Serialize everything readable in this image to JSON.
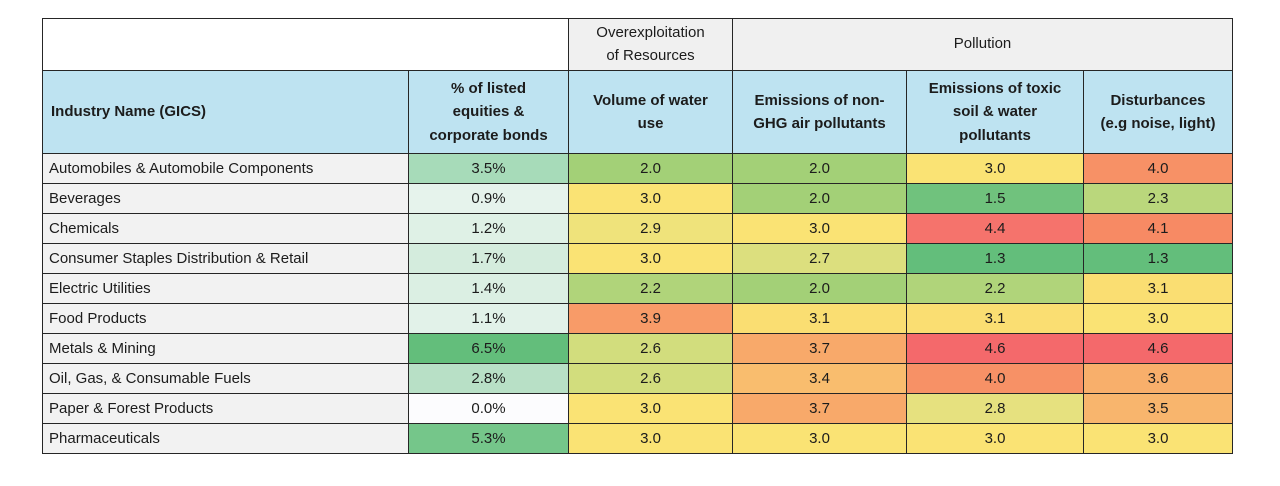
{
  "table": {
    "group_headers": {
      "overexploitation": "Overexploitation\nof Resources",
      "pollution": "Pollution"
    },
    "column_headers": [
      "Industry Name (GICS)",
      "% of listed\nequities &\ncorporate bonds",
      "Volume of water\nuse",
      "Emissions of non-\nGHG air pollutants",
      "Emissions of toxic\nsoil & water\npollutants",
      "Disturbances\n(e.g noise, light)"
    ],
    "cell_names": [
      "pct-listed-cell",
      "water-use-cell",
      "non-ghg-air-cell",
      "toxic-soil-water-cell",
      "disturbances-cell"
    ],
    "colors": {
      "header_blue": "#BEE3F1",
      "group_gray": "#F0F0F0",
      "label_gray": "#F2F2F2",
      "border": "#262626"
    },
    "rows": [
      {
        "name": "Automobiles & Automobile Components",
        "cells": [
          {
            "v": "3.5%",
            "c": "#A7DBB9"
          },
          {
            "v": "2.0",
            "c": "#A3D077"
          },
          {
            "v": "2.0",
            "c": "#A3D077"
          },
          {
            "v": "3.0",
            "c": "#FAE374"
          },
          {
            "v": "4.0",
            "c": "#F79166"
          }
        ]
      },
      {
        "name": "Beverages",
        "cells": [
          {
            "v": "0.9%",
            "c": "#E6F3EC"
          },
          {
            "v": "3.0",
            "c": "#FAE374"
          },
          {
            "v": "2.0",
            "c": "#A3D077"
          },
          {
            "v": "1.5",
            "c": "#70C27D"
          },
          {
            "v": "2.3",
            "c": "#BAD77C"
          }
        ]
      },
      {
        "name": "Chemicals",
        "cells": [
          {
            "v": "1.2%",
            "c": "#DFF1E6"
          },
          {
            "v": "2.9",
            "c": "#EFE37B"
          },
          {
            "v": "3.0",
            "c": "#FAE374"
          },
          {
            "v": "4.4",
            "c": "#F5736C"
          },
          {
            "v": "4.1",
            "c": "#F78A64"
          }
        ]
      },
      {
        "name": "Consumer Staples Distribution & Retail",
        "cells": [
          {
            "v": "1.7%",
            "c": "#D4ECDD"
          },
          {
            "v": "3.0",
            "c": "#FAE374"
          },
          {
            "v": "2.7",
            "c": "#DCDF7E"
          },
          {
            "v": "1.3",
            "c": "#63BE7B"
          },
          {
            "v": "1.3",
            "c": "#63BE7B"
          }
        ]
      },
      {
        "name": "Electric Utilities",
        "cells": [
          {
            "v": "1.4%",
            "c": "#DBEFE3"
          },
          {
            "v": "2.2",
            "c": "#B0D47A"
          },
          {
            "v": "2.0",
            "c": "#A3D077"
          },
          {
            "v": "2.2",
            "c": "#B0D47A"
          },
          {
            "v": "3.1",
            "c": "#FADE72"
          }
        ]
      },
      {
        "name": "Food Products",
        "cells": [
          {
            "v": "1.1%",
            "c": "#E2F2E9"
          },
          {
            "v": "3.9",
            "c": "#F89B68"
          },
          {
            "v": "3.1",
            "c": "#FADE72"
          },
          {
            "v": "3.1",
            "c": "#FADE72"
          },
          {
            "v": "3.0",
            "c": "#FAE374"
          }
        ]
      },
      {
        "name": "Metals & Mining",
        "cells": [
          {
            "v": "6.5%",
            "c": "#63BE7B"
          },
          {
            "v": "2.6",
            "c": "#D2DD7D"
          },
          {
            "v": "3.7",
            "c": "#F8A96A"
          },
          {
            "v": "4.6",
            "c": "#F4696B"
          },
          {
            "v": "4.6",
            "c": "#F4696B"
          }
        ]
      },
      {
        "name": "Oil, Gas, & Consumable Fuels",
        "cells": [
          {
            "v": "2.8%",
            "c": "#B8E0C6"
          },
          {
            "v": "2.6",
            "c": "#D2DD7D"
          },
          {
            "v": "3.4",
            "c": "#F9BD6E"
          },
          {
            "v": "4.0",
            "c": "#F79166"
          },
          {
            "v": "3.6",
            "c": "#F8AF6B"
          }
        ]
      },
      {
        "name": "Paper & Forest Products",
        "cells": [
          {
            "v": "0.0%",
            "c": "#FCFCFE"
          },
          {
            "v": "3.0",
            "c": "#FAE374"
          },
          {
            "v": "3.7",
            "c": "#F8A96A"
          },
          {
            "v": "2.8",
            "c": "#E6E17F"
          },
          {
            "v": "3.5",
            "c": "#F8B56D"
          }
        ]
      },
      {
        "name": "Pharmaceuticals",
        "cells": [
          {
            "v": "5.3%",
            "c": "#75C68A"
          },
          {
            "v": "3.0",
            "c": "#FAE374"
          },
          {
            "v": "3.0",
            "c": "#FAE374"
          },
          {
            "v": "3.0",
            "c": "#FAE374"
          },
          {
            "v": "3.0",
            "c": "#FAE374"
          }
        ]
      }
    ]
  },
  "chart_data": {
    "type": "heatmap",
    "row_header": "Industry Name (GICS)",
    "column_groups": [
      {
        "label": "Overexploitation of Resources",
        "columns": [
          "Volume of water use"
        ]
      },
      {
        "label": "Pollution",
        "columns": [
          "Emissions of non-GHG air pollutants",
          "Emissions of toxic soil & water pollutants",
          "Disturbances (e.g noise, light)"
        ]
      }
    ],
    "weight_column": "% of listed equities & corporate bonds",
    "rows": [
      "Automobiles & Automobile Components",
      "Beverages",
      "Chemicals",
      "Consumer Staples Distribution & Retail",
      "Electric Utilities",
      "Food Products",
      "Metals & Mining",
      "Oil, Gas, & Consumable Fuels",
      "Paper & Forest Products",
      "Pharmaceuticals"
    ],
    "weights_pct": [
      3.5,
      0.9,
      1.2,
      1.7,
      1.4,
      1.1,
      6.5,
      2.8,
      0.0,
      5.3
    ],
    "scores": {
      "Volume of water use": [
        2.0,
        3.0,
        2.9,
        3.0,
        2.2,
        3.9,
        2.6,
        2.6,
        3.0,
        3.0
      ],
      "Emissions of non-GHG air pollutants": [
        2.0,
        2.0,
        3.0,
        2.7,
        2.0,
        3.1,
        3.7,
        3.4,
        3.7,
        3.0
      ],
      "Emissions of toxic soil & water pollutants": [
        3.0,
        1.5,
        4.4,
        1.3,
        2.2,
        3.1,
        4.6,
        4.0,
        2.8,
        3.0
      ],
      "Disturbances (e.g noise, light)": [
        4.0,
        2.3,
        4.1,
        1.3,
        3.1,
        3.0,
        4.6,
        3.6,
        3.5,
        3.0
      ]
    },
    "score_color_scale": {
      "min": {
        "value": 1.3,
        "color": "#63BE7B"
      },
      "mid": {
        "value": 3.0,
        "color": "#FAE374"
      },
      "max": {
        "value": 4.6,
        "color": "#F4696B"
      }
    },
    "weight_color_scale": {
      "min": {
        "value": 0.0,
        "color": "#FCFCFE"
      },
      "max": {
        "value": 6.5,
        "color": "#63BE7B"
      }
    }
  }
}
